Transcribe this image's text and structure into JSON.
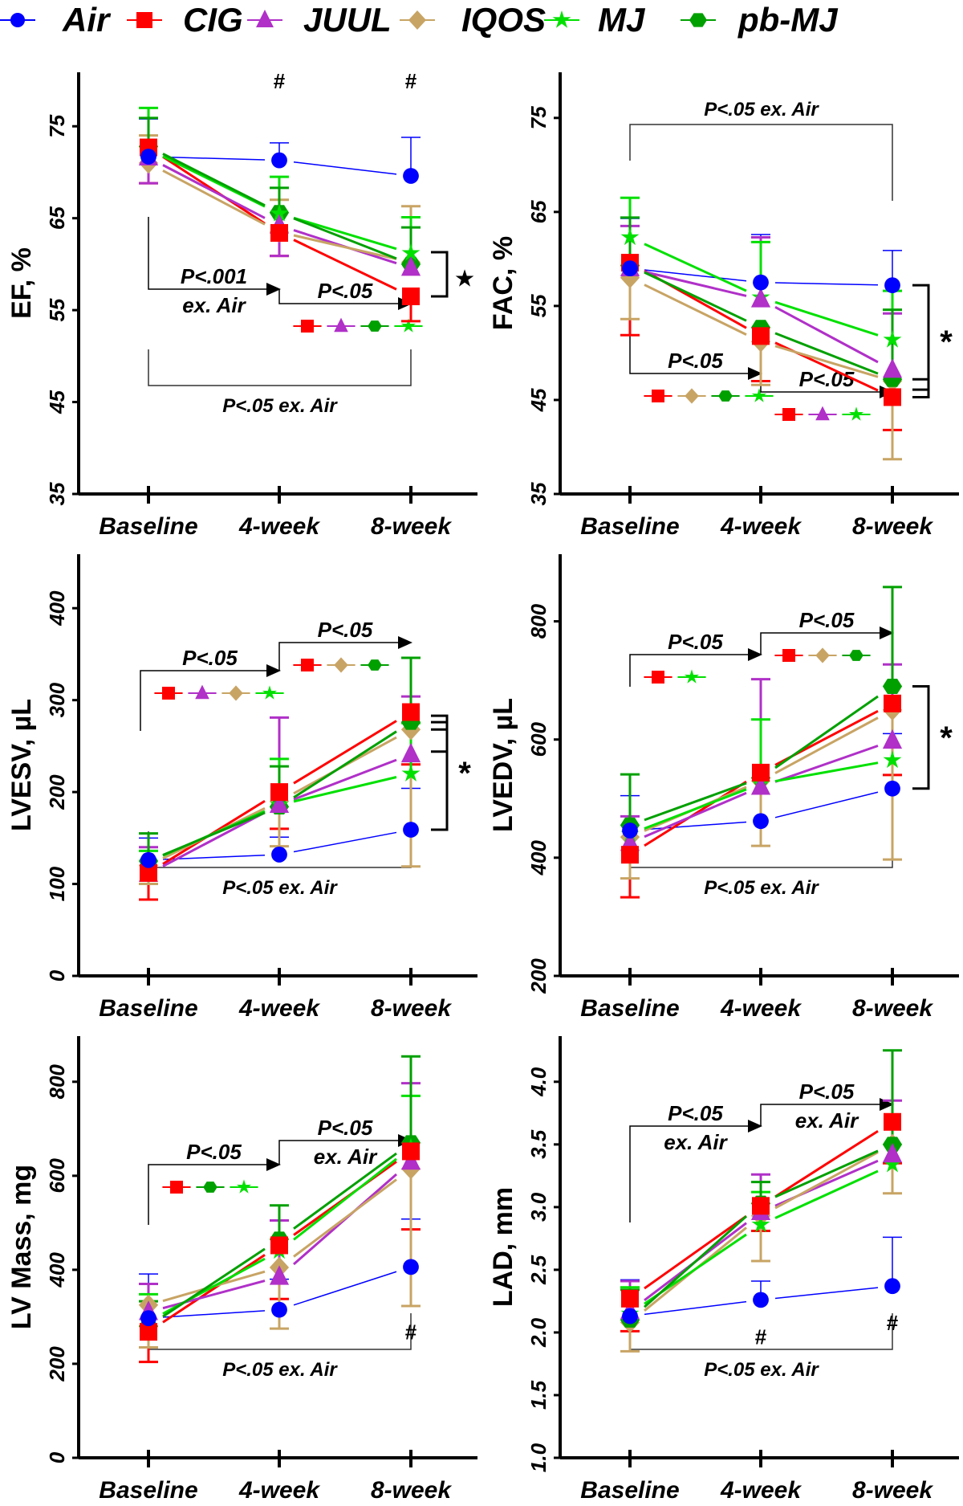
{
  "legend": [
    {
      "name": "Air",
      "color": "#0000ff",
      "marker": "circle"
    },
    {
      "name": "CIG",
      "color": "#ff0000",
      "marker": "square"
    },
    {
      "name": "JUUL",
      "color": "#b030c8",
      "marker": "triangle"
    },
    {
      "name": "IQOS",
      "color": "#c8a464",
      "marker": "diamond"
    },
    {
      "name": "MJ",
      "color": "#00e000",
      "marker": "star"
    },
    {
      "name": "pb-MJ",
      "color": "#00a000",
      "marker": "hexagon"
    }
  ],
  "chart_data": [
    {
      "type": "line",
      "title": "EF",
      "ylabel": "EF, %",
      "categories": [
        "Baseline",
        "4-week",
        "8-week"
      ],
      "ylim": [
        35,
        80
      ],
      "yticks": [
        "35",
        "45",
        "55",
        "65",
        "75"
      ],
      "ytick_values": [
        35,
        45,
        55,
        65,
        75
      ],
      "series": [
        {
          "name": "Air",
          "values": [
            71.7,
            71.3,
            69.6
          ],
          "err_hi": [
            75.8,
            73.2,
            73.8
          ],
          "err_lo": [
            null,
            null,
            null
          ]
        },
        {
          "name": "CIG",
          "values": [
            72.7,
            63.4,
            56.5
          ],
          "err_hi": [
            null,
            null,
            null
          ],
          "err_lo": [
            68.8,
            60.9,
            53.8
          ]
        },
        {
          "name": "JUUL",
          "values": [
            71.6,
            64.2,
            59.6
          ],
          "err_hi": [
            null,
            null,
            null
          ],
          "err_lo": [
            68.8,
            60.9,
            null
          ]
        },
        {
          "name": "IQOS",
          "values": [
            71.0,
            63.5,
            60.2
          ],
          "err_hi": [
            74.0,
            67.0,
            66.3
          ],
          "err_lo": [
            null,
            null,
            null
          ]
        },
        {
          "name": "MJ",
          "values": [
            72.5,
            65.5,
            61.2
          ],
          "err_hi": [
            77.0,
            69.5,
            65.1
          ],
          "err_lo": [
            null,
            null,
            null
          ]
        },
        {
          "name": "pb-MJ",
          "values": [
            72.8,
            65.6,
            60.0
          ],
          "err_hi": [
            75.9,
            68.3,
            64.0
          ],
          "err_lo": [
            null,
            null,
            null
          ]
        }
      ],
      "annotations": {
        "hash_marks": [
          {
            "x": "4-week",
            "text": "#"
          },
          {
            "x": "8-week",
            "text": "#"
          }
        ],
        "step1": {
          "text": [
            "P<.001",
            "ex. Air"
          ],
          "from": "Baseline",
          "to": "4-week"
        },
        "step2": {
          "text": [
            "P<.05"
          ],
          "from": "4-week",
          "to": "8-week",
          "markers": [
            "CIG",
            "JUUL",
            "pb-MJ",
            "MJ"
          ]
        },
        "bracket": {
          "text": "P<.05 ex. Air",
          "from": "Baseline",
          "to": "8-week",
          "position": "below"
        },
        "side_bracket": {
          "symbol": "★",
          "from_value": 61.3,
          "to_value": 56.5
        }
      }
    },
    {
      "type": "line",
      "title": "FAC",
      "ylabel": "FAC, %",
      "categories": [
        "Baseline",
        "4-week",
        "8-week"
      ],
      "ylim": [
        35,
        79
      ],
      "yticks": [
        "35",
        "45",
        "55",
        "65",
        "75"
      ],
      "ytick_values": [
        35,
        45,
        55,
        65,
        75
      ],
      "series": [
        {
          "name": "Air",
          "values": [
            59.0,
            57.5,
            57.2
          ],
          "err_hi": [
            64.3,
            62.6,
            60.9
          ],
          "err_lo": [
            null,
            null,
            null
          ]
        },
        {
          "name": "CIG",
          "values": [
            59.6,
            51.8,
            45.3
          ],
          "err_hi": [
            null,
            null,
            null
          ],
          "err_lo": [
            51.9,
            47.0,
            41.8
          ]
        },
        {
          "name": "JUUL",
          "values": [
            59.0,
            55.7,
            48.2
          ],
          "err_hi": [
            63.5,
            62.3,
            54.2
          ],
          "err_lo": [
            null,
            null,
            null
          ]
        },
        {
          "name": "IQOS",
          "values": [
            58.0,
            51.2,
            47.0
          ],
          "err_hi": [
            null,
            null,
            null
          ],
          "err_lo": [
            53.6,
            46.6,
            38.7
          ]
        },
        {
          "name": "MJ",
          "values": [
            62.3,
            55.9,
            51.4
          ],
          "err_hi": [
            66.5,
            61.8,
            56.6
          ],
          "err_lo": [
            null,
            null,
            null
          ]
        },
        {
          "name": "pb-MJ",
          "values": [
            59.3,
            52.7,
            47.2
          ],
          "err_hi": [
            64.4,
            null,
            54.6
          ],
          "err_lo": [
            null,
            null,
            null
          ]
        }
      ],
      "annotations": {
        "hash_marks": [],
        "step1": {
          "text": [
            "P<.05"
          ],
          "from": "Baseline",
          "to": "4-week",
          "markers": [
            "CIG",
            "IQOS",
            "pb-MJ",
            "MJ"
          ]
        },
        "step2": {
          "text": [
            "P<.05"
          ],
          "from": "4-week",
          "to": "8-week",
          "markers": [
            "CIG",
            "JUUL",
            "MJ"
          ]
        },
        "bracket": {
          "text": "P<.05 ex. Air",
          "from": "Baseline",
          "to": "8-week",
          "position": "above"
        },
        "side_bracket": {
          "symbol": "*",
          "from_value": 57.2,
          "to_value": 45.3,
          "extra_ticks": [
            47.2,
            46.1
          ]
        }
      }
    },
    {
      "type": "line",
      "title": "LVESV",
      "ylabel": "LVESV, µL",
      "categories": [
        "Baseline",
        "4-week",
        "8-week"
      ],
      "ylim": [
        0,
        450
      ],
      "yticks": [
        "0",
        "100",
        "200",
        "300",
        "400"
      ],
      "ytick_values": [
        0,
        100,
        200,
        300,
        400
      ],
      "series": [
        {
          "name": "Air",
          "values": [
            126,
            132,
            159
          ],
          "err_hi": [
            150,
            151,
            204
          ],
          "err_lo": [
            null,
            null,
            null
          ]
        },
        {
          "name": "CIG",
          "values": [
            112,
            200,
            287
          ],
          "err_hi": [
            null,
            null,
            null
          ],
          "err_lo": [
            83,
            160,
            230
          ]
        },
        {
          "name": "JUUL",
          "values": [
            111,
            186,
            241
          ],
          "err_hi": [
            140,
            281,
            304
          ],
          "err_lo": [
            null,
            null,
            null
          ]
        },
        {
          "name": "IQOS",
          "values": [
            120,
            190,
            268
          ],
          "err_hi": [
            null,
            null,
            null
          ],
          "err_lo": [
            100,
            141,
            119
          ]
        },
        {
          "name": "MJ",
          "values": [
            124,
            186,
            220
          ],
          "err_hi": [
            136,
            236,
            275
          ],
          "err_lo": [
            null,
            null,
            null
          ]
        },
        {
          "name": "pb-MJ",
          "values": [
            125,
            184,
            276
          ],
          "err_hi": [
            155,
            228,
            346
          ],
          "err_lo": [
            null,
            null,
            null
          ]
        }
      ],
      "annotations": {
        "hash_marks": [],
        "step1": {
          "text": [
            "P<.05"
          ],
          "from": "Baseline",
          "to": "4-week",
          "markers": [
            "CIG",
            "JUUL",
            "IQOS",
            "MJ"
          ]
        },
        "step2": {
          "text": [
            "P<.05"
          ],
          "from": "4-week",
          "to": "8-week",
          "markers": [
            "CIG",
            "IQOS",
            "pb-MJ"
          ]
        },
        "bracket": {
          "text": "P<.05 ex. Air",
          "from": "Baseline",
          "to": "8-week",
          "position": "below"
        },
        "side_bracket": {
          "symbol": "*",
          "from_value": 283,
          "to_value": 159,
          "extra_ticks": [
            276,
            268,
            244
          ]
        }
      }
    },
    {
      "type": "line",
      "title": "LVEDV",
      "ylabel": "LVEDV, µL",
      "categories": [
        "Baseline",
        "4-week",
        "8-week"
      ],
      "ylim": [
        200,
        900
      ],
      "yticks": [
        "200",
        "400",
        "600",
        "800"
      ],
      "ytick_values": [
        200,
        400,
        600,
        800
      ],
      "series": [
        {
          "name": "Air",
          "values": [
            446,
            462,
            517
          ],
          "err_hi": [
            505,
            null,
            610
          ],
          "err_lo": [
            null,
            null,
            null
          ]
        },
        {
          "name": "CIG",
          "values": [
            405,
            544,
            661
          ],
          "err_hi": [
            null,
            null,
            null
          ],
          "err_lo": [
            333,
            null,
            540
          ]
        },
        {
          "name": "JUUL",
          "values": [
            425,
            520,
            598
          ],
          "err_hi": [
            470,
            702,
            727
          ],
          "err_lo": [
            null,
            null,
            null
          ]
        },
        {
          "name": "IQOS",
          "values": [
            435,
            530,
            650
          ],
          "err_hi": [
            null,
            null,
            null
          ],
          "err_lo": [
            365,
            420,
            397
          ]
        },
        {
          "name": "MJ",
          "values": [
            440,
            525,
            565
          ],
          "err_hi": [
            null,
            634,
            null
          ],
          "err_lo": [
            null,
            null,
            null
          ]
        },
        {
          "name": "pb-MJ",
          "values": [
            455,
            535,
            690
          ],
          "err_hi": [
            541,
            null,
            858
          ],
          "err_lo": [
            null,
            null,
            null
          ]
        }
      ],
      "annotations": {
        "hash_marks": [],
        "step1": {
          "text": [
            "P<.05"
          ],
          "from": "Baseline",
          "to": "4-week",
          "markers": [
            "CIG",
            "MJ"
          ]
        },
        "step2": {
          "text": [
            "P<.05"
          ],
          "from": "4-week",
          "to": "8-week",
          "markers": [
            "CIG",
            "IQOS",
            "pb-MJ"
          ]
        },
        "bracket": {
          "text": "P<.05 ex. Air",
          "from": "Baseline",
          "to": "8-week",
          "position": "below"
        },
        "side_bracket": {
          "symbol": "*",
          "from_value": 690,
          "to_value": 517
        }
      }
    },
    {
      "type": "line",
      "title": "LV Mass",
      "ylabel": "LV Mass, mg",
      "categories": [
        "Baseline",
        "4-week",
        "8-week"
      ],
      "ylim": [
        0,
        880
      ],
      "yticks": [
        "0",
        "200",
        "400",
        "600",
        "800"
      ],
      "ytick_values": [
        0,
        200,
        400,
        600,
        800
      ],
      "series": [
        {
          "name": "Air",
          "values": [
            297,
            315,
            406
          ],
          "err_hi": [
            391,
            380,
            508
          ],
          "err_lo": [
            null,
            null,
            null
          ]
        },
        {
          "name": "CIG",
          "values": [
            268,
            452,
            652
          ],
          "err_hi": [
            null,
            null,
            null
          ],
          "err_lo": [
            204,
            338,
            486
          ]
        },
        {
          "name": "JUUL",
          "values": [
            310,
            385,
            630
          ],
          "err_hi": [
            370,
            505,
            797
          ],
          "err_lo": [
            null,
            null,
            null
          ]
        },
        {
          "name": "IQOS",
          "values": [
            325,
            405,
            615
          ],
          "err_hi": [
            null,
            null,
            null
          ],
          "err_lo": [
            235,
            275,
            323
          ]
        },
        {
          "name": "MJ",
          "values": [
            290,
            440,
            660
          ],
          "err_hi": [
            348,
            null,
            770
          ],
          "err_lo": [
            null,
            null,
            null
          ]
        },
        {
          "name": "pb-MJ",
          "values": [
            280,
            465,
            670
          ],
          "err_hi": [
            333,
            537,
            854
          ],
          "err_lo": [
            null,
            null,
            null
          ]
        }
      ],
      "annotations": {
        "hash_marks": [
          {
            "x": "8-week",
            "text": "#",
            "position": "below"
          }
        ],
        "step1": {
          "text": [
            "P<.05"
          ],
          "from": "Baseline",
          "to": "4-week",
          "markers": [
            "CIG",
            "pb-MJ",
            "MJ"
          ]
        },
        "step2": {
          "text": [
            "P<.05",
            "ex. Air"
          ],
          "from": "4-week",
          "to": "8-week"
        },
        "bracket": {
          "text": "P<.05 ex. Air",
          "from": "Baseline",
          "to": "8-week",
          "position": "below"
        }
      }
    },
    {
      "type": "line",
      "title": "LAD",
      "ylabel": "LAD, mm",
      "categories": [
        "Baseline",
        "4-week",
        "8-week"
      ],
      "ylim": [
        1.0,
        4.3
      ],
      "yticks": [
        "1.0",
        "1.5",
        "2.0",
        "2.5",
        "3.0",
        "3.5",
        "4.0"
      ],
      "ytick_values": [
        1.0,
        1.5,
        2.0,
        2.5,
        3.0,
        3.5,
        4.0
      ],
      "series": [
        {
          "name": "Air",
          "values": [
            2.13,
            2.26,
            2.37
          ],
          "err_hi": [
            2.42,
            2.41,
            2.76
          ],
          "err_lo": [
            null,
            null,
            null
          ]
        },
        {
          "name": "CIG",
          "values": [
            2.27,
            3.01,
            3.68
          ],
          "err_hi": [
            null,
            null,
            null
          ],
          "err_lo": [
            2.01,
            2.81,
            3.35
          ]
        },
        {
          "name": "JUUL",
          "values": [
            2.17,
            2.96,
            3.42
          ],
          "err_hi": [
            2.41,
            3.26,
            3.85
          ],
          "err_lo": [
            null,
            null,
            null
          ]
        },
        {
          "name": "IQOS",
          "values": [
            2.08,
            2.93,
            3.5
          ],
          "err_hi": [
            null,
            null,
            null
          ],
          "err_lo": [
            1.85,
            2.57,
            3.11
          ]
        },
        {
          "name": "MJ",
          "values": [
            2.15,
            2.86,
            3.34
          ],
          "err_hi": [
            2.36,
            3.12,
            null
          ],
          "err_lo": [
            null,
            null,
            null
          ]
        },
        {
          "name": "pb-MJ",
          "values": [
            2.1,
            3.03,
            3.5
          ],
          "err_hi": [
            2.34,
            3.2,
            4.25
          ],
          "err_lo": [
            null,
            null,
            null
          ]
        }
      ],
      "annotations": {
        "hash_marks": [
          {
            "x": "4-week",
            "text": "#",
            "position": "below"
          },
          {
            "x": "8-week",
            "text": "#",
            "position": "below"
          }
        ],
        "step1": {
          "text": [
            "P<.05",
            "ex. Air"
          ],
          "from": "Baseline",
          "to": "4-week"
        },
        "step2": {
          "text": [
            "P<.05",
            "ex. Air"
          ],
          "from": "4-week",
          "to": "8-week"
        },
        "bracket": {
          "text": "P<.05 ex. Air",
          "from": "Baseline",
          "to": "8-week",
          "position": "below"
        }
      }
    }
  ]
}
